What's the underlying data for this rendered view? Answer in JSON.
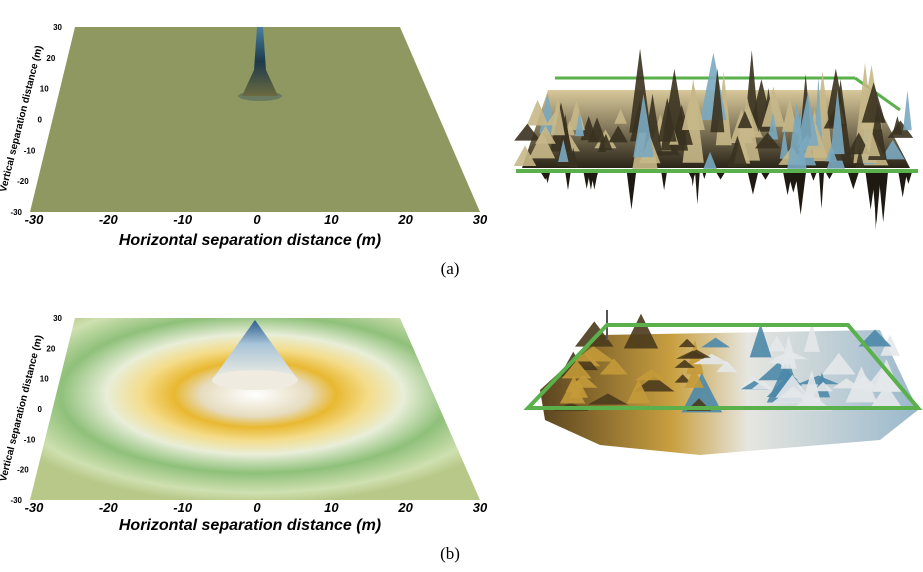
{
  "panels": [
    {
      "y_axis_title": "Vertical separation distance (m)",
      "y_ticks": [
        "30",
        "20",
        "10",
        "0",
        "-10",
        "-20",
        "-30"
      ],
      "x_ticks": [
        "-30",
        "-20",
        "-10",
        "0",
        "10",
        "20",
        "30"
      ],
      "x_axis_title": "Horizontal separation distance (m)",
      "caption": "(a)"
    },
    {
      "y_axis_title": "Vertical separation distance (m)",
      "y_ticks": [
        "30",
        "20",
        "10",
        "0",
        "-10",
        "-20",
        "-30"
      ],
      "x_ticks": [
        "-30",
        "-20",
        "-10",
        "0",
        "10",
        "20",
        "30"
      ],
      "x_axis_title": "Horizontal separation distance (m)",
      "caption": "(b)"
    }
  ]
}
